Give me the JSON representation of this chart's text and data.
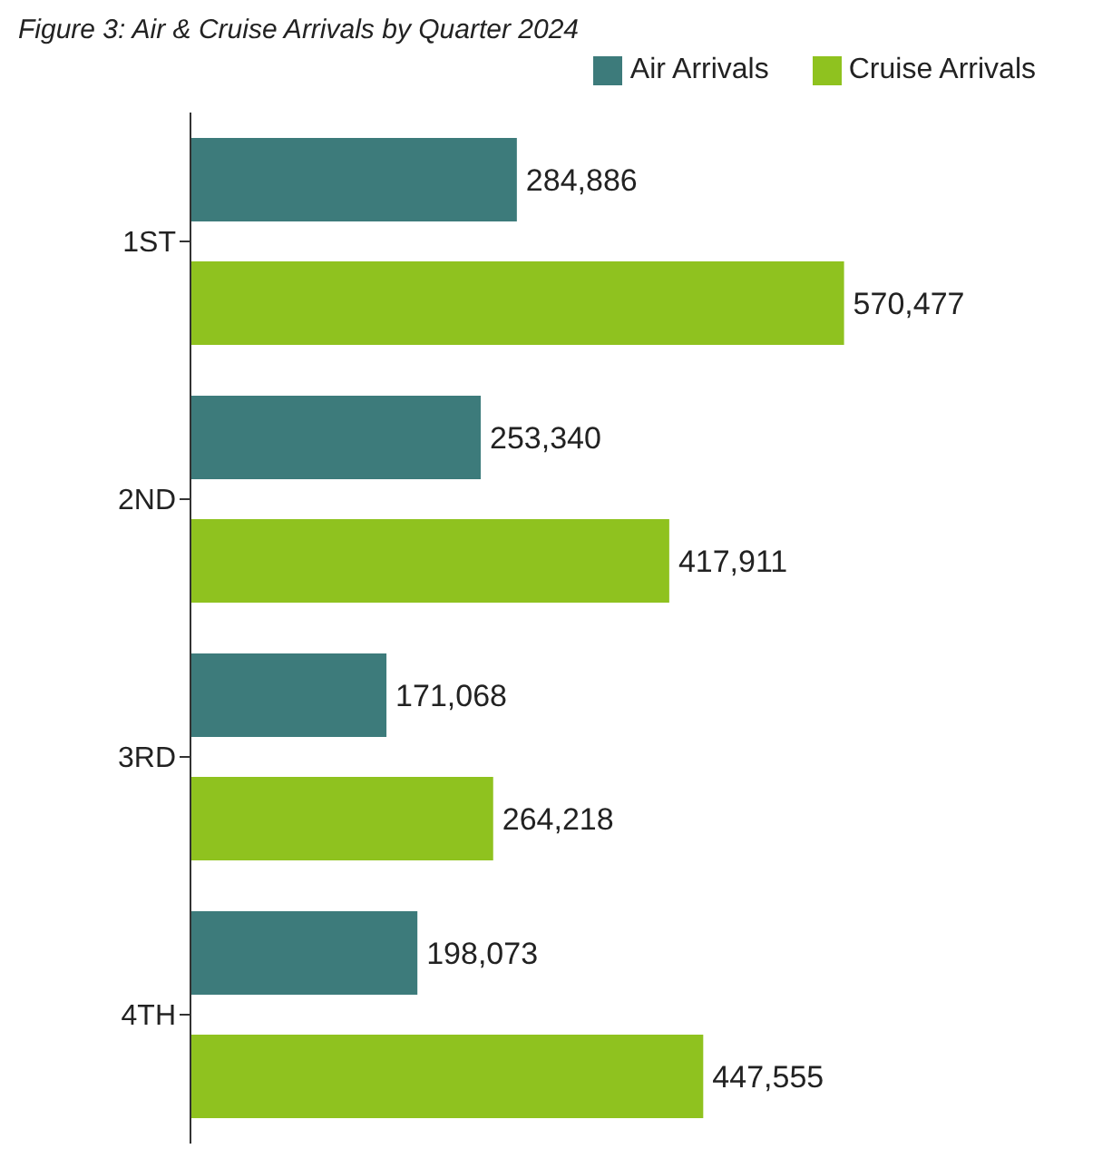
{
  "chart_data": {
    "type": "bar",
    "orientation": "horizontal",
    "title": "Figure 3: Air & Cruise Arrivals by Quarter 2024",
    "categories": [
      "1ST",
      "2ND",
      "3RD",
      "4TH"
    ],
    "series": [
      {
        "name": "Air Arrivals",
        "color": "#3d7b7b",
        "values": [
          284886,
          253340,
          171068,
          198073
        ],
        "value_labels": [
          "284,886",
          "253,340",
          "171,068",
          "198,073"
        ]
      },
      {
        "name": "Cruise Arrivals",
        "color": "#8fc21f",
        "values": [
          570477,
          417911,
          264218,
          447555
        ],
        "value_labels": [
          "570,477",
          "417,911",
          "264,218",
          "447,555"
        ]
      }
    ],
    "legend": "top right",
    "tick_labels": "y"
  }
}
